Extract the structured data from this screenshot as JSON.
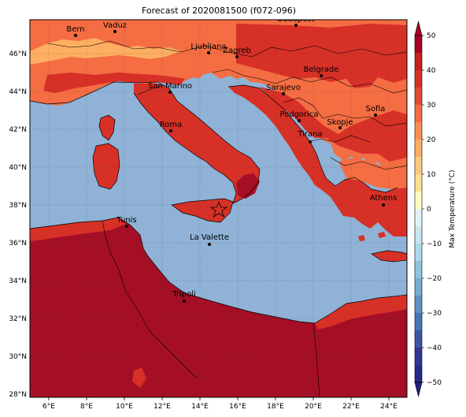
{
  "title": "Forecast of 2020081500 (f072-096)",
  "colors": {
    "sea": "#8fb2d6",
    "c40": "#a50f26",
    "c30": "#d73027",
    "c20": "#f46d43",
    "c10": "#fdae61",
    "c0": "#fee090",
    "frame": "#000000",
    "grid": "#3a3a3a"
  },
  "lon_ticks": [
    "6°E",
    "8°E",
    "10°E",
    "12°E",
    "14°E",
    "16°E",
    "18°E",
    "20°E",
    "22°E",
    "24°E"
  ],
  "lat_ticks": [
    "28°N",
    "30°N",
    "32°N",
    "34°N",
    "36°N",
    "38°N",
    "40°N",
    "42°N",
    "44°N",
    "46°N"
  ],
  "cities": [
    {
      "name": "Bern"
    },
    {
      "name": "Vaduz"
    },
    {
      "name": "Budapest"
    },
    {
      "name": "Ljubljana"
    },
    {
      "name": "Zagreb"
    },
    {
      "name": "Belgrade"
    },
    {
      "name": "San Marino"
    },
    {
      "name": "Sarajevo"
    },
    {
      "name": "Sofia"
    },
    {
      "name": "Podgorica"
    },
    {
      "name": "Skopje"
    },
    {
      "name": "Roma"
    },
    {
      "name": "Tirana"
    },
    {
      "name": "Athens"
    },
    {
      "name": "Tunis"
    },
    {
      "name": "La Valette"
    },
    {
      "name": "Tripoli"
    }
  ],
  "marker": {
    "symbol": "star",
    "color": "#d73027"
  },
  "colorbar": {
    "label": "Max Temperature (°C)",
    "ticks": [
      "50",
      "40",
      "30",
      "20",
      "10",
      "0",
      "−10",
      "−20",
      "−30",
      "−40",
      "−50"
    ],
    "colors_top_to_bottom": [
      "#a50026",
      "#d73027",
      "#f46d43",
      "#fdae61",
      "#fee090",
      "#ffffbf",
      "#e0f3f8",
      "#abd9e9",
      "#74add1",
      "#4575b4",
      "#313695",
      "#1f2280"
    ]
  }
}
